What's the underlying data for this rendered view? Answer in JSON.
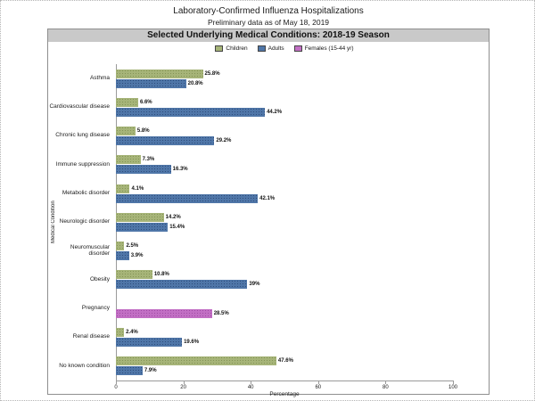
{
  "chart_data": {
    "type": "bar",
    "orientation": "horizontal",
    "title": "Laboratory-Confirmed Influenza Hospitalizations",
    "subtitle": "Preliminary data as of May 18, 2019",
    "banner": "Selected Underlying Medical Conditions: 2018-19 Season",
    "xlabel": "Percentage",
    "ylabel": "Medical Condition",
    "xlim": [
      0,
      100
    ],
    "xticks": [
      0,
      20,
      40,
      60,
      80,
      100
    ],
    "grid": false,
    "legend_position": "top-center",
    "categories": [
      "Asthma",
      "Cardiovascular disease",
      "Chronic lung disease",
      "Immune suppression",
      "Metabolic disorder",
      "Neurologic disorder",
      "Neuromuscular disorder",
      "Obesity",
      "Pregnancy",
      "Renal disease",
      "No known condition"
    ],
    "series": [
      {
        "name": "Children",
        "color": "#a6b478",
        "values": [
          25.8,
          6.6,
          5.8,
          7.3,
          4.1,
          14.2,
          2.5,
          10.8,
          null,
          2.4,
          47.6
        ],
        "labels": [
          "25.8%",
          "6.6%",
          "5.8%",
          "7.3%",
          "4.1%",
          "14.2%",
          "2.5%",
          "10.8%",
          null,
          "2.4%",
          "47.6%"
        ]
      },
      {
        "name": "Adults",
        "color": "#4f76a8",
        "values": [
          20.8,
          44.2,
          29.2,
          16.3,
          42.1,
          15.4,
          3.9,
          39,
          null,
          19.6,
          7.9
        ],
        "labels": [
          "20.8%",
          "44.2%",
          "29.2%",
          "16.3%",
          "42.1%",
          "15.4%",
          "3.9%",
          "39%",
          null,
          "19.6%",
          "7.9%"
        ]
      },
      {
        "name": "Females (15-44 yr)",
        "color": "#c26fc4",
        "values": [
          null,
          null,
          null,
          null,
          null,
          null,
          null,
          null,
          28.5,
          null,
          null
        ],
        "labels": [
          null,
          null,
          null,
          null,
          null,
          null,
          null,
          null,
          "28.5%",
          null,
          null
        ]
      }
    ]
  }
}
